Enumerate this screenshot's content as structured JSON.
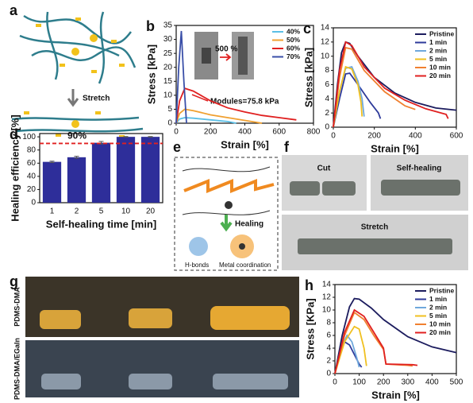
{
  "chart_data": [
    {
      "type": "line",
      "panel": "b",
      "xlabel": "Strain [%]",
      "ylabel": "Stress [kPa]",
      "xlim": [
        0,
        800
      ],
      "xticks": [
        0,
        200,
        400,
        600,
        800
      ],
      "ylim": [
        0,
        35
      ],
      "yticks": [
        0,
        5,
        10,
        15,
        20,
        25,
        30,
        35
      ],
      "legend": "upper right",
      "annotations": [
        "500 %",
        "Modules=75.8 kPa"
      ],
      "series": [
        {
          "name": "40%",
          "color": "#5bbfe6",
          "x": [
            0,
            20,
            50,
            100,
            200,
            300,
            350
          ],
          "values": [
            0,
            1.5,
            2,
            1.8,
            1.2,
            0.6,
            0
          ]
        },
        {
          "name": "50%",
          "color": "#f0a030",
          "x": [
            0,
            20,
            50,
            100,
            200,
            300,
            400,
            500
          ],
          "values": [
            0,
            3.5,
            5,
            4.5,
            3,
            2,
            1,
            0
          ]
        },
        {
          "name": "60%",
          "color": "#e02020",
          "x": [
            0,
            20,
            50,
            100,
            200,
            300,
            400,
            500,
            600,
            700
          ],
          "values": [
            0,
            8,
            12.5,
            11.5,
            8,
            5.5,
            4,
            2.8,
            2,
            1.2
          ]
        },
        {
          "name": "70%",
          "color": "#3a4fa8",
          "x": [
            0,
            15,
            30,
            45,
            60
          ],
          "values": [
            0,
            20,
            33,
            15,
            0
          ]
        }
      ]
    },
    {
      "type": "line",
      "panel": "c",
      "xlabel": "Strain [%]",
      "ylabel": "Stress [kPa]",
      "xlim": [
        0,
        600
      ],
      "xticks": [
        0,
        200,
        400,
        600
      ],
      "ylim": [
        0,
        14
      ],
      "yticks": [
        0,
        2,
        4,
        6,
        8,
        10,
        12,
        14
      ],
      "legend": "upper right",
      "series": [
        {
          "name": "Pristine",
          "color": "#1c1c5e",
          "x": [
            0,
            20,
            40,
            60,
            80,
            120,
            200,
            300,
            400,
            500,
            600
          ],
          "values": [
            0,
            6,
            10.5,
            12,
            11.8,
            10,
            7,
            4.8,
            3.5,
            2.7,
            2.4
          ]
        },
        {
          "name": "1 min",
          "color": "#2e3a9a",
          "x": [
            0,
            30,
            60,
            80,
            120,
            180,
            220,
            230
          ],
          "values": [
            0,
            4,
            7.5,
            7.6,
            6,
            3.5,
            2,
            1.2
          ]
        },
        {
          "name": "2 min",
          "color": "#6fa8dc",
          "x": [
            0,
            30,
            60,
            90,
            120,
            140,
            150
          ],
          "values": [
            0,
            5,
            8.3,
            8.5,
            6.5,
            4,
            1.5
          ]
        },
        {
          "name": "5 min",
          "color": "#f0c020",
          "x": [
            0,
            30,
            60,
            90,
            120,
            135,
            140
          ],
          "values": [
            0,
            5,
            8.5,
            8.2,
            6,
            3.5,
            1.5
          ]
        },
        {
          "name": "10 min",
          "color": "#f08030",
          "x": [
            0,
            30,
            60,
            90,
            150,
            250,
            350,
            400
          ],
          "values": [
            0,
            7,
            11.2,
            11,
            8,
            5,
            3,
            2.5
          ]
        },
        {
          "name": "20 min",
          "color": "#e02020",
          "x": [
            0,
            30,
            60,
            90,
            150,
            250,
            350,
            450,
            550,
            560
          ],
          "values": [
            0,
            8,
            12,
            11.5,
            8.5,
            5.5,
            3.8,
            2.6,
            1.8,
            1.2
          ]
        }
      ]
    },
    {
      "type": "bar",
      "panel": "d",
      "xlabel": "Self-healing time [min]",
      "ylabel": "Healing efficiency [%]",
      "categories": [
        "1",
        "2",
        "5",
        "10",
        "20"
      ],
      "values": [
        62,
        69,
        91,
        100,
        100
      ],
      "errors": [
        1,
        1.5,
        2,
        0.5,
        0.5
      ],
      "color": "#2e2e9a",
      "ylim": [
        0,
        105
      ],
      "yticks": [
        0,
        20,
        40,
        60,
        80,
        100
      ],
      "ref_line": {
        "value": 90,
        "label": "90%",
        "color": "#e02020"
      }
    },
    {
      "type": "line",
      "panel": "h",
      "xlabel": "Strain [%]",
      "ylabel": "Stress [KPa]",
      "xlim": [
        0,
        500
      ],
      "xticks": [
        0,
        100,
        200,
        300,
        400,
        500
      ],
      "ylim": [
        0,
        14
      ],
      "yticks": [
        0,
        2,
        4,
        6,
        8,
        10,
        12,
        14
      ],
      "legend": "upper right",
      "series": [
        {
          "name": "Pristine",
          "color": "#1c1c5e",
          "x": [
            0,
            30,
            60,
            80,
            100,
            150,
            200,
            300,
            400,
            500
          ],
          "values": [
            0,
            6,
            10.5,
            11.8,
            11.7,
            10.3,
            8.5,
            5.8,
            4.2,
            3.3
          ]
        },
        {
          "name": "1 min",
          "color": "#2e3a9a",
          "x": [
            0,
            20,
            40,
            60,
            80,
            100,
            110
          ],
          "values": [
            0,
            3,
            5,
            4.5,
            3,
            1.5,
            1
          ]
        },
        {
          "name": "2 min",
          "color": "#6fa8dc",
          "x": [
            0,
            25,
            50,
            70,
            90,
            100
          ],
          "values": [
            0,
            4,
            6,
            5,
            2.5,
            1
          ]
        },
        {
          "name": "5 min",
          "color": "#f0c020",
          "x": [
            0,
            40,
            80,
            100,
            120,
            130
          ],
          "values": [
            0,
            5,
            7.4,
            7,
            4,
            1.2
          ]
        },
        {
          "name": "10 min",
          "color": "#f08030",
          "x": [
            0,
            40,
            80,
            120,
            160,
            200,
            210,
            300,
            320
          ],
          "values": [
            0,
            6,
            9.6,
            8.5,
            6,
            3.8,
            1.5,
            1.3,
            1.2
          ]
        },
        {
          "name": "20 min",
          "color": "#e02020",
          "x": [
            0,
            40,
            80,
            120,
            160,
            200,
            210,
            320,
            340
          ],
          "values": [
            0,
            6.5,
            10,
            9,
            6.5,
            4,
            1.5,
            1.4,
            1.3
          ]
        }
      ]
    }
  ],
  "panels": {
    "a": {
      "label": "a",
      "arrow": "Stretch"
    },
    "e": {
      "label": "e",
      "step": "Healing",
      "legend": [
        "H-bonds",
        "Metal coordination"
      ]
    },
    "f": {
      "label": "f",
      "photos": [
        "Cut",
        "Self-healing",
        "Stretch"
      ]
    },
    "g": {
      "label": "g",
      "rows": [
        "PDMS-DMA",
        "PDMS-DMA/EGaIn"
      ]
    }
  }
}
